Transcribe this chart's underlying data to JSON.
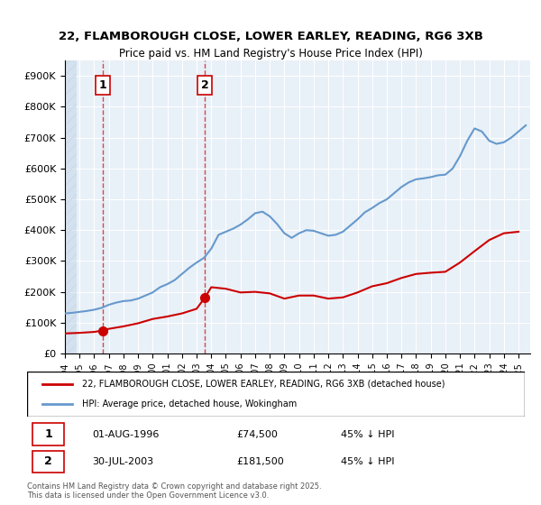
{
  "title_line1": "22, FLAMBOROUGH CLOSE, LOWER EARLEY, READING, RG6 3XB",
  "title_line2": "Price paid vs. HM Land Registry's House Price Index (HPI)",
  "ylabel": "",
  "xlabel": "",
  "ylim": [
    0,
    950000
  ],
  "xlim_start": 1994.0,
  "xlim_end": 2025.8,
  "background_color": "#ffffff",
  "plot_bg_color": "#e8f0f8",
  "hatch_color": "#c8d8e8",
  "grid_color": "#ffffff",
  "legend_entry1": "22, FLAMBOROUGH CLOSE, LOWER EARLEY, READING, RG6 3XB (detached house)",
  "legend_entry2": "HPI: Average price, detached house, Wokingham",
  "footer": "Contains HM Land Registry data © Crown copyright and database right 2025.\nThis data is licensed under the Open Government Licence v3.0.",
  "sale1_label": "1",
  "sale1_date": "01-AUG-1996",
  "sale1_price": "£74,500",
  "sale1_hpi": "45% ↓ HPI",
  "sale1_x": 1996.58,
  "sale1_y": 74500,
  "sale2_label": "2",
  "sale2_date": "30-JUL-2003",
  "sale2_price": "£181,500",
  "sale2_hpi": "45% ↓ HPI",
  "sale2_x": 2003.57,
  "sale2_y": 181500,
  "red_line_color": "#cc0000",
  "blue_line_color": "#6699cc",
  "marker_color": "#cc0000",
  "dashed_color": "#cc0000",
  "annotation_box_color": "#cc0000",
  "hpi_years": [
    1994,
    1994.5,
    1995,
    1995.5,
    1996,
    1996.5,
    1997,
    1997.5,
    1998,
    1998.5,
    1999,
    1999.5,
    2000,
    2000.5,
    2001,
    2001.5,
    2002,
    2002.5,
    2003,
    2003.5,
    2004,
    2004.5,
    2005,
    2005.5,
    2006,
    2006.5,
    2007,
    2007.5,
    2008,
    2008.5,
    2009,
    2009.5,
    2010,
    2010.5,
    2011,
    2011.5,
    2012,
    2012.5,
    2013,
    2013.5,
    2014,
    2014.5,
    2015,
    2015.5,
    2016,
    2016.5,
    2017,
    2017.5,
    2018,
    2018.5,
    2019,
    2019.5,
    2020,
    2020.5,
    2021,
    2021.5,
    2022,
    2022.5,
    2023,
    2023.5,
    2024,
    2024.5,
    2025,
    2025.5
  ],
  "hpi_values": [
    130000,
    132000,
    135000,
    138000,
    142000,
    148000,
    158000,
    165000,
    170000,
    172000,
    178000,
    188000,
    198000,
    215000,
    225000,
    238000,
    258000,
    278000,
    295000,
    310000,
    340000,
    385000,
    395000,
    405000,
    418000,
    435000,
    455000,
    460000,
    445000,
    420000,
    390000,
    375000,
    390000,
    400000,
    398000,
    390000,
    382000,
    385000,
    395000,
    415000,
    435000,
    458000,
    472000,
    488000,
    500000,
    520000,
    540000,
    555000,
    565000,
    568000,
    572000,
    578000,
    580000,
    600000,
    640000,
    690000,
    730000,
    720000,
    690000,
    680000,
    685000,
    700000,
    720000,
    740000
  ],
  "red_years": [
    1994,
    1995,
    1996,
    1996.58,
    1997,
    1998,
    1999,
    2000,
    2001,
    2002,
    2003,
    2003.57,
    2004,
    2005,
    2006,
    2007,
    2008,
    2009,
    2010,
    2011,
    2012,
    2013,
    2014,
    2015,
    2016,
    2017,
    2018,
    2019,
    2020,
    2021,
    2022,
    2023,
    2024,
    2025
  ],
  "red_values": [
    65000,
    67000,
    70000,
    74500,
    80000,
    88000,
    98000,
    112000,
    120000,
    130000,
    145000,
    181500,
    215000,
    210000,
    198000,
    200000,
    195000,
    178000,
    188000,
    188000,
    178000,
    182000,
    198000,
    218000,
    228000,
    245000,
    258000,
    262000,
    265000,
    295000,
    332000,
    368000,
    390000,
    395000
  ],
  "ytick_values": [
    0,
    100000,
    200000,
    300000,
    400000,
    500000,
    600000,
    700000,
    800000,
    900000
  ],
  "ytick_labels": [
    "£0",
    "£100K",
    "£200K",
    "£300K",
    "£400K",
    "£500K",
    "£600K",
    "£700K",
    "£800K",
    "£900K"
  ],
  "xtick_years": [
    1994,
    1995,
    1996,
    1997,
    1998,
    1999,
    2000,
    2001,
    2002,
    2003,
    2004,
    2005,
    2006,
    2007,
    2008,
    2009,
    2010,
    2011,
    2012,
    2013,
    2014,
    2015,
    2016,
    2017,
    2018,
    2019,
    2020,
    2021,
    2022,
    2023,
    2024,
    2025
  ]
}
